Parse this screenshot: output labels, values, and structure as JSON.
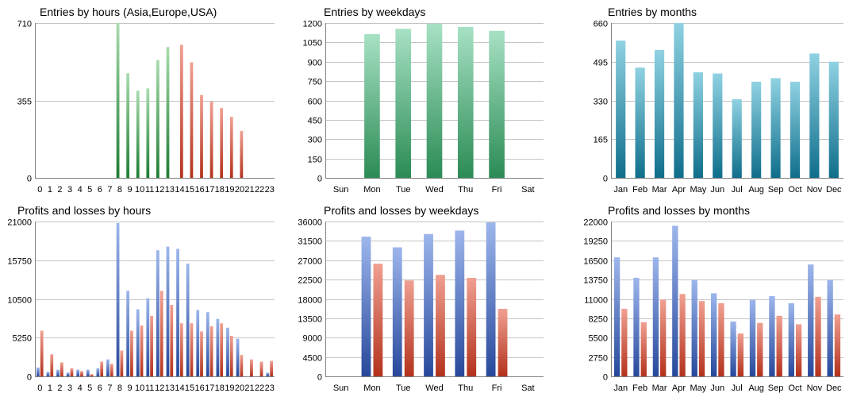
{
  "colors": {
    "green_top": "#a9dcae",
    "green_bottom": "#1d7d32",
    "red_top": "#f0a092",
    "red_bottom": "#b3321c",
    "mint_top": "#a7e1c4",
    "mint_bottom": "#2b8b55",
    "teal_top": "#8fd2e2",
    "teal_bottom": "#0f6e8b",
    "blue_top": "#9db6ec",
    "blue_bottom": "#27489b",
    "grid": "#c4c4c4",
    "axis": "#808080"
  },
  "chart_data": [
    {
      "type": "bar",
      "title": "Entries by hours (Asia,Europe,USA)",
      "categories": [
        "0",
        "1",
        "2",
        "3",
        "4",
        "5",
        "6",
        "7",
        "8",
        "9",
        "10",
        "11",
        "12",
        "13",
        "14",
        "15",
        "16",
        "17",
        "18",
        "19",
        "20",
        "21",
        "22",
        "23"
      ],
      "series": [
        {
          "values": [
            0,
            0,
            0,
            0,
            0,
            0,
            0,
            0,
            710,
            480,
            400,
            410,
            540,
            600,
            0,
            0,
            0,
            0,
            0,
            0,
            0,
            0,
            0,
            0
          ],
          "color": "green"
        },
        {
          "values": [
            0,
            0,
            0,
            0,
            0,
            0,
            0,
            0,
            0,
            0,
            0,
            0,
            0,
            0,
            610,
            530,
            380,
            350,
            320,
            280,
            215,
            0,
            0,
            0
          ],
          "color": "red"
        }
      ],
      "yticks": [
        "0",
        "355",
        "710"
      ],
      "ylim": [
        0,
        710
      ],
      "grid": true
    },
    {
      "type": "bar",
      "title": "Entries by weekdays",
      "categories": [
        "Sun",
        "Mon",
        "Tue",
        "Wed",
        "Thu",
        "Fri",
        "Sat"
      ],
      "series": [
        {
          "values": [
            0,
            1115,
            1155,
            1195,
            1170,
            1140,
            0
          ],
          "color": "mint"
        }
      ],
      "yticks": [
        "0",
        "150",
        "300",
        "450",
        "600",
        "750",
        "900",
        "1050",
        "1200"
      ],
      "ylim": [
        0,
        1200
      ],
      "grid": true
    },
    {
      "type": "bar",
      "title": "Entries by months",
      "categories": [
        "Jan",
        "Feb",
        "Mar",
        "Apr",
        "May",
        "Jun",
        "Jul",
        "Aug",
        "Sep",
        "Oct",
        "Nov",
        "Dec"
      ],
      "series": [
        {
          "values": [
            585,
            470,
            545,
            660,
            450,
            445,
            335,
            410,
            425,
            410,
            530,
            495
          ],
          "color": "teal"
        }
      ],
      "yticks": [
        "0",
        "165",
        "330",
        "495",
        "660"
      ],
      "ylim": [
        0,
        660
      ],
      "grid": true
    },
    {
      "type": "bar",
      "title": "Profits and losses by hours",
      "categories": [
        "0",
        "1",
        "2",
        "3",
        "4",
        "5",
        "6",
        "7",
        "8",
        "9",
        "10",
        "11",
        "12",
        "13",
        "14",
        "15",
        "16",
        "17",
        "18",
        "19",
        "20",
        "21",
        "22",
        "23"
      ],
      "series": [
        {
          "values": [
            1200,
            600,
            900,
            500,
            900,
            900,
            1100,
            2300,
            20800,
            11600,
            9100,
            10600,
            17100,
            17600,
            17300,
            15300,
            9000,
            8700,
            7800,
            6600,
            5100,
            0,
            0,
            500
          ],
          "color": "blue"
        },
        {
          "values": [
            6200,
            3000,
            1900,
            1100,
            700,
            300,
            2000,
            1700,
            3500,
            6200,
            6900,
            8200,
            11600,
            9700,
            7200,
            7200,
            6100,
            6800,
            7200,
            5500,
            2900,
            2300,
            2000,
            2100
          ],
          "color": "red"
        }
      ],
      "yticks": [
        "0",
        "5250",
        "10500",
        "15750",
        "21000"
      ],
      "ylim": [
        0,
        21000
      ],
      "grid": true
    },
    {
      "type": "bar",
      "title": "Profits and losses by weekdays",
      "categories": [
        "Sun",
        "Mon",
        "Tue",
        "Wed",
        "Thu",
        "Fri",
        "Sat"
      ],
      "series": [
        {
          "values": [
            0,
            32500,
            30000,
            33100,
            33900,
            35800,
            0
          ],
          "color": "blue"
        },
        {
          "values": [
            0,
            26200,
            22300,
            23600,
            22900,
            15700,
            0
          ],
          "color": "red"
        }
      ],
      "yticks": [
        "0",
        "4500",
        "9000",
        "13500",
        "18000",
        "22500",
        "27000",
        "31500",
        "36000"
      ],
      "ylim": [
        0,
        36000
      ],
      "grid": true
    },
    {
      "type": "bar",
      "title": "Profits and losses by months",
      "categories": [
        "Jan",
        "Feb",
        "Mar",
        "Apr",
        "May",
        "Jun",
        "Jul",
        "Aug",
        "Sep",
        "Oct",
        "Nov",
        "Dec"
      ],
      "series": [
        {
          "values": [
            16900,
            14000,
            16900,
            21400,
            13700,
            11800,
            7800,
            10900,
            11400,
            10400,
            15900,
            13700
          ],
          "color": "blue"
        },
        {
          "values": [
            9600,
            7700,
            10900,
            11700,
            10700,
            10400,
            6100,
            7600,
            8600,
            7400,
            11300,
            8800
          ],
          "color": "red"
        }
      ],
      "yticks": [
        "0",
        "2750",
        "5500",
        "8250",
        "11000",
        "13750",
        "16500",
        "19250",
        "22000"
      ],
      "ylim": [
        0,
        22000
      ],
      "grid": true
    }
  ]
}
